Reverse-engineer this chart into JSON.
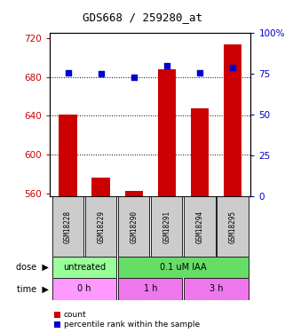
{
  "title": "GDS668 / 259280_at",
  "samples": [
    "GSM18228",
    "GSM18229",
    "GSM18290",
    "GSM18291",
    "GSM18294",
    "GSM18295"
  ],
  "bar_values": [
    641,
    576,
    563,
    688,
    648,
    714
  ],
  "bar_bottom": 557,
  "percentile_values": [
    76,
    75,
    73,
    80,
    76,
    79
  ],
  "ylim_left": [
    557,
    725
  ],
  "ylim_right": [
    0,
    100
  ],
  "yticks_left": [
    560,
    600,
    640,
    680,
    720
  ],
  "yticks_right": [
    0,
    25,
    50,
    75,
    100
  ],
  "ytick_labels_right": [
    "0",
    "25",
    "50",
    "75",
    "100%"
  ],
  "bar_color": "#cc0000",
  "percentile_color": "#0000cc",
  "dose_spans": [
    {
      "text": "untreated",
      "start": 0,
      "end": 1,
      "color": "#99ff99"
    },
    {
      "text": "0.1 uM IAA",
      "start": 2,
      "end": 5,
      "color": "#66dd66"
    }
  ],
  "time_spans": [
    {
      "text": "0 h",
      "start": 0,
      "end": 1,
      "color": "#ff99ff"
    },
    {
      "text": "1 h",
      "start": 2,
      "end": 3,
      "color": "#ee77ee"
    },
    {
      "text": "3 h",
      "start": 4,
      "end": 5,
      "color": "#ee77ee"
    }
  ],
  "sample_box_color": "#cccccc",
  "dose_row_label": "dose",
  "time_row_label": "time",
  "legend_count_label": "count",
  "legend_pct_label": "percentile rank within the sample",
  "tick_color_left": "#cc0000",
  "tick_color_right": "#0000cc",
  "background_color": "#ffffff",
  "hgrid_vals": [
    600,
    640,
    680
  ]
}
